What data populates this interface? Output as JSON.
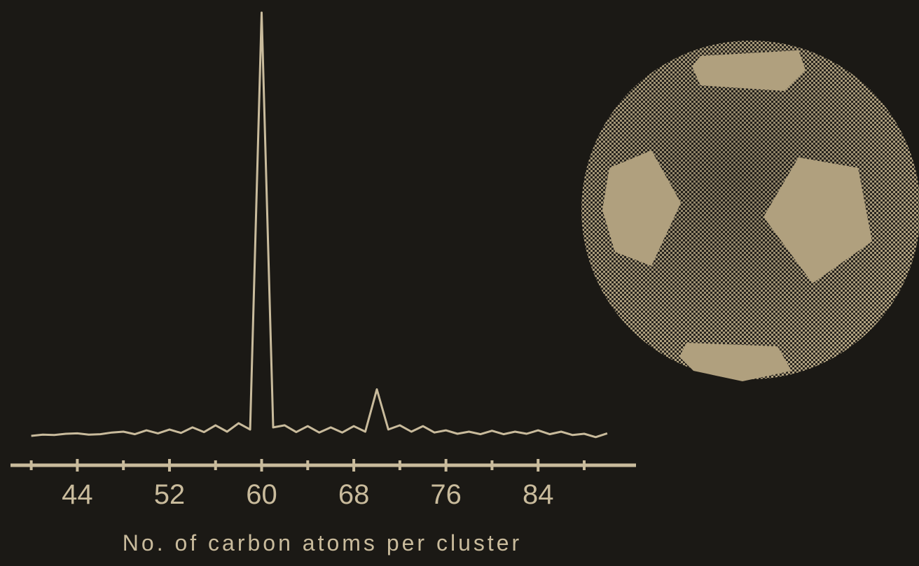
{
  "chart_data": {
    "type": "line",
    "x_label": "No. of carbon atoms per cluster",
    "x": [
      40,
      41,
      42,
      43,
      44,
      45,
      46,
      47,
      48,
      49,
      50,
      51,
      52,
      53,
      54,
      55,
      56,
      57,
      58,
      59,
      60,
      61,
      62,
      63,
      64,
      65,
      66,
      67,
      68,
      69,
      70,
      71,
      72,
      73,
      74,
      75,
      76,
      77,
      78,
      79,
      80,
      81,
      82,
      83,
      84,
      85,
      86,
      87,
      88,
      89,
      90
    ],
    "values": [
      0,
      0.3,
      0.2,
      0.5,
      0.6,
      0.3,
      0.4,
      0.8,
      1,
      0.4,
      1.3,
      0.6,
      1.5,
      0.7,
      2,
      0.9,
      2.5,
      1,
      3,
      1.5,
      100,
      2,
      2.5,
      0.9,
      2.3,
      0.8,
      2,
      0.8,
      2.3,
      1,
      11,
      1.5,
      2.5,
      1,
      2.3,
      0.8,
      1.3,
      0.5,
      1,
      0.4,
      1.2,
      0.4,
      1,
      0.5,
      1.3,
      0.4,
      1,
      0.2,
      0.5,
      -0.3,
      0.6
    ],
    "color": "#c9bb9c",
    "xlim": [
      38.2,
      92.5
    ],
    "ylim": [
      0,
      100
    ],
    "xticks": [
      44,
      52,
      60,
      68,
      76,
      84
    ],
    "minor_xticks": [
      40,
      48,
      56,
      64,
      72,
      80,
      88
    ]
  }
}
